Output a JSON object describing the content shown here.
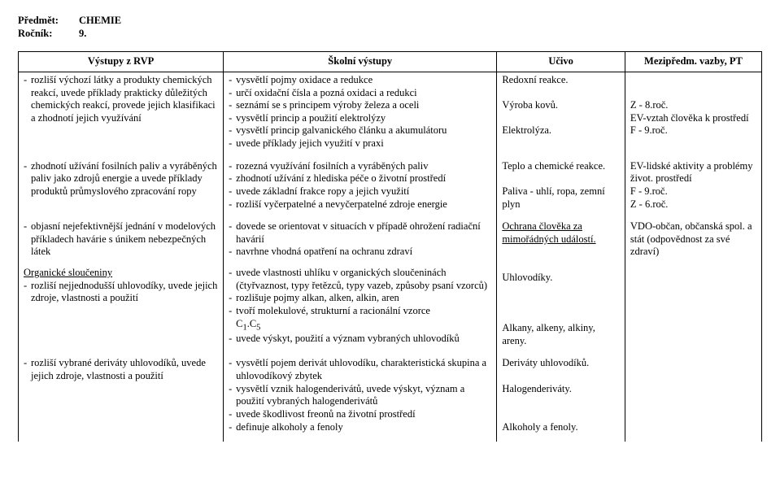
{
  "header": {
    "label_subject": "Předmět:",
    "subject": "CHEMIE",
    "label_grade": "Ročník:",
    "grade": "9."
  },
  "columns": {
    "c1": "Výstupy z RVP",
    "c2": "Školní výstupy",
    "c3": "Učivo",
    "c4": "Mezipředm. vazby, PT"
  },
  "block1": {
    "col1": [
      "rozliší výchozí látky a produkty chemických reakcí, uvede příklady prakticky důležitých chemických reakcí, provede jejich klasifikaci a zhodnotí jejich využívání"
    ],
    "col2": [
      "vysvětlí pojmy oxidace a redukce",
      "určí oxidační čísla a pozná oxidaci a redukci",
      "seznámí se s principem výroby železa a oceli",
      "vysvětlí princip a použití elektrolýzy",
      "vysvětlí princip galvanického článku a akumulátoru",
      "uvede příklady jejich využití v praxi"
    ],
    "col3": [
      "Redoxní reakce.",
      "",
      "Výroba kovů.",
      "",
      "Elektrolýza."
    ],
    "col4": [
      "",
      "",
      "Z - 8.roč.",
      "EV-vztah člověka k prostředí",
      "F - 9.roč."
    ]
  },
  "block2": {
    "col1": [
      "zhodnotí užívání fosilních paliv a vyráběných paliv jako zdrojů energie a uvede příklady produktů průmyslového zpracování ropy"
    ],
    "col2": [
      "rozezná využívání fosilních a vyráběných paliv",
      "zhodnotí užívání z hlediska péče o životní prostředí",
      "uvede základní frakce ropy a jejich využití",
      "rozliší vyčerpatelné a nevyčerpatelné zdroje energie"
    ],
    "col3": [
      "Teplo a chemické reakce.",
      "",
      "Paliva - uhlí, ropa, zemní plyn"
    ],
    "col4": [
      "EV-lidské aktivity a problémy život. prostředí",
      "F - 9.roč.",
      "Z - 6.roč."
    ]
  },
  "block3": {
    "col1": [
      "objasní nejefektivnější jednání v modelových příkladech havárie s únikem nebezpečných látek"
    ],
    "col1_section_title": "Organické sloučeniny",
    "col1_after": [
      "rozliší nejjednodušší uhlovodíky, uvede jejich zdroje, vlastnosti a použití"
    ],
    "col2": [
      "dovede se orientovat v situacích v případě ohrožení radiační havárií",
      "navrhne vhodná opatření na ochranu zdraví"
    ],
    "col2_after": [
      "uvede vlastnosti uhlíku v organických sloučeninách (čtyřvaznost, typy řetězců, typy vazeb, způsoby psaní vzorců)",
      "rozlišuje pojmy alkan, alken, alkin, aren"
    ],
    "col2_mol_pre": "tvoří molekulové, strukturní a racionální vzorce ",
    "col2_mol_c1": "C",
    "col2_mol_sub1": "1",
    "col2_mol_dash": ".",
    "col2_mol_c5": "C",
    "col2_mol_sub5": "5",
    "col2_last": [
      "uvede výskyt, použití a význam vybraných uhlovodíků"
    ],
    "col3": [
      {
        "text": "Ochrana člověka za",
        "u": true
      },
      {
        "text": "mimořádných událostí.",
        "u": true
      },
      "",
      "",
      "Uhlovodíky.",
      "",
      "",
      "",
      "Alkany, alkeny, alkiny, areny."
    ],
    "col4": [
      "VDO-občan, občanská spol. a stát (odpovědnost za své zdraví)"
    ]
  },
  "block4": {
    "col1": [
      "rozliší vybrané deriváty uhlovodíků, uvede jejich zdroje, vlastnosti a použití"
    ],
    "col2": [
      "vysvětlí pojem derivát uhlovodíku, charakteristická skupina a uhlovodíkový zbytek",
      "vysvětlí vznik halogenderivátů, uvede výskyt, význam a použití vybraných halogenderivátů",
      "uvede škodlivost freonů na životní prostředí",
      "definuje alkoholy a fenoly"
    ],
    "col3": [
      "Deriváty uhlovodíků.",
      "",
      "Halogenderiváty.",
      "",
      "",
      "Alkoholy a fenoly."
    ],
    "col4": []
  }
}
